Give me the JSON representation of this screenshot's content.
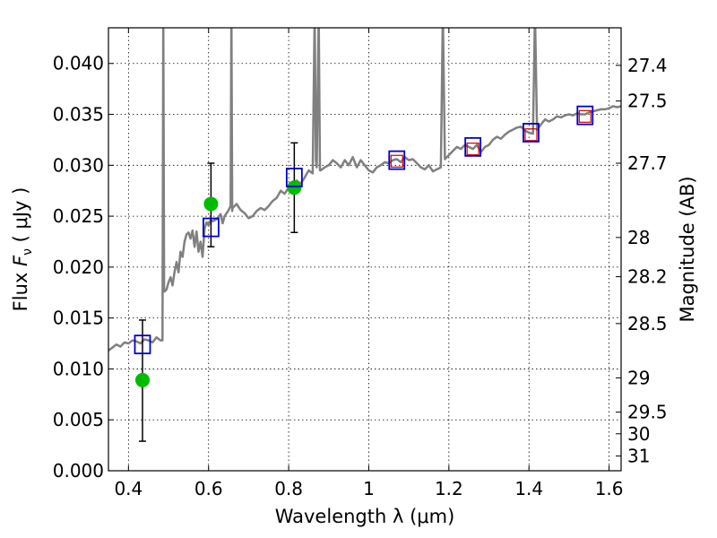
{
  "chart_data": {
    "type": "scatter",
    "xlabel": "Wavelength  λ (μm)",
    "ylabel": "Flux  Fν  ( μJy )",
    "ylabel_parts": {
      "prefix": "Flux  ",
      "symbol": "F",
      "subscript": "ν",
      "suffix": "  ( μJy )"
    },
    "ylabel_right": "Magnitude (AB)",
    "xlim": [
      0.35,
      1.63
    ],
    "ylim": [
      0.0,
      0.0435
    ],
    "grid": true,
    "x_ticks": [
      {
        "value": 0.4,
        "label": "0.4"
      },
      {
        "value": 0.6,
        "label": "0.6"
      },
      {
        "value": 0.8,
        "label": "0.8"
      },
      {
        "value": 1.0,
        "label": "1"
      },
      {
        "value": 1.2,
        "label": "1.2"
      },
      {
        "value": 1.4,
        "label": "1.4"
      },
      {
        "value": 1.6,
        "label": "1.6"
      }
    ],
    "y_ticks": [
      {
        "value": 0.0,
        "label": "0.000"
      },
      {
        "value": 0.005,
        "label": "0.005"
      },
      {
        "value": 0.01,
        "label": "0.010"
      },
      {
        "value": 0.015,
        "label": "0.015"
      },
      {
        "value": 0.02,
        "label": "0.020"
      },
      {
        "value": 0.025,
        "label": "0.025"
      },
      {
        "value": 0.03,
        "label": "0.030"
      },
      {
        "value": 0.035,
        "label": "0.035"
      },
      {
        "value": 0.04,
        "label": "0.040"
      }
    ],
    "right_ticks": [
      {
        "mag": 27.4,
        "label": "27.4"
      },
      {
        "mag": 27.5,
        "label": "27.5"
      },
      {
        "mag": 27.7,
        "label": "27.7"
      },
      {
        "mag": 28,
        "label": "28"
      },
      {
        "mag": 28.2,
        "label": "28.2"
      },
      {
        "mag": 28.5,
        "label": "28.5"
      },
      {
        "mag": 29,
        "label": "29"
      },
      {
        "mag": 29.5,
        "label": "29.5"
      },
      {
        "mag": 30,
        "label": "30"
      },
      {
        "mag": 31,
        "label": "31"
      }
    ],
    "colors": {
      "spectrum": "#808080",
      "observed": "#00bb00",
      "model_blue": "#0000cc",
      "model_red": "#cc0000",
      "errorbar": "#000000"
    },
    "spectrum": [
      [
        0.35,
        0.0118
      ],
      [
        0.36,
        0.0121
      ],
      [
        0.37,
        0.0124
      ],
      [
        0.38,
        0.0122
      ],
      [
        0.39,
        0.0126
      ],
      [
        0.4,
        0.0125
      ],
      [
        0.41,
        0.0128
      ],
      [
        0.42,
        0.0127
      ],
      [
        0.43,
        0.0125
      ],
      [
        0.44,
        0.0129
      ],
      [
        0.45,
        0.0128
      ],
      [
        0.46,
        0.0126
      ],
      [
        0.47,
        0.0131
      ],
      [
        0.48,
        0.0128
      ],
      [
        0.485,
        0.0128
      ],
      [
        0.487,
        0.045
      ],
      [
        0.489,
        0.018
      ],
      [
        0.49,
        0.0176
      ],
      [
        0.495,
        0.0178
      ],
      [
        0.5,
        0.0185
      ],
      [
        0.505,
        0.019
      ],
      [
        0.51,
        0.0182
      ],
      [
        0.515,
        0.0195
      ],
      [
        0.52,
        0.0205
      ],
      [
        0.525,
        0.0195
      ],
      [
        0.53,
        0.0215
      ],
      [
        0.535,
        0.021
      ],
      [
        0.54,
        0.0225
      ],
      [
        0.545,
        0.0232
      ],
      [
        0.55,
        0.0234
      ],
      [
        0.555,
        0.0228
      ],
      [
        0.56,
        0.0236
      ],
      [
        0.565,
        0.022
      ],
      [
        0.57,
        0.0235
      ],
      [
        0.575,
        0.0215
      ],
      [
        0.58,
        0.0225
      ],
      [
        0.585,
        0.021
      ],
      [
        0.59,
        0.0238
      ],
      [
        0.595,
        0.0244
      ],
      [
        0.6,
        0.0241
      ],
      [
        0.605,
        0.0246
      ],
      [
        0.61,
        0.0245
      ],
      [
        0.62,
        0.0247
      ],
      [
        0.63,
        0.0252
      ],
      [
        0.635,
        0.0243
      ],
      [
        0.64,
        0.025
      ],
      [
        0.65,
        0.0256
      ],
      [
        0.655,
        0.026
      ],
      [
        0.657,
        0.045
      ],
      [
        0.659,
        0.0255
      ],
      [
        0.66,
        0.0258
      ],
      [
        0.67,
        0.0262
      ],
      [
        0.68,
        0.0256
      ],
      [
        0.69,
        0.0253
      ],
      [
        0.7,
        0.0248
      ],
      [
        0.71,
        0.025
      ],
      [
        0.72,
        0.0255
      ],
      [
        0.73,
        0.0258
      ],
      [
        0.74,
        0.0256
      ],
      [
        0.75,
        0.026
      ],
      [
        0.76,
        0.0265
      ],
      [
        0.77,
        0.0268
      ],
      [
        0.78,
        0.0275
      ],
      [
        0.79,
        0.0272
      ],
      [
        0.8,
        0.0278
      ],
      [
        0.81,
        0.0282
      ],
      [
        0.82,
        0.0285
      ],
      [
        0.83,
        0.0282
      ],
      [
        0.84,
        0.0288
      ],
      [
        0.85,
        0.0295
      ],
      [
        0.86,
        0.0292
      ],
      [
        0.865,
        0.045
      ],
      [
        0.868,
        0.0305
      ],
      [
        0.87,
        0.0298
      ],
      [
        0.875,
        0.045
      ],
      [
        0.878,
        0.0295
      ],
      [
        0.88,
        0.0295
      ],
      [
        0.89,
        0.0298
      ],
      [
        0.9,
        0.03
      ],
      [
        0.91,
        0.0305
      ],
      [
        0.92,
        0.0302
      ],
      [
        0.93,
        0.0298
      ],
      [
        0.94,
        0.0305
      ],
      [
        0.95,
        0.03
      ],
      [
        0.96,
        0.0308
      ],
      [
        0.97,
        0.0298
      ],
      [
        0.98,
        0.0305
      ],
      [
        0.99,
        0.03
      ],
      [
        1.0,
        0.0295
      ],
      [
        1.01,
        0.0293
      ],
      [
        1.02,
        0.0298
      ],
      [
        1.03,
        0.03
      ],
      [
        1.04,
        0.0303
      ],
      [
        1.05,
        0.0302
      ],
      [
        1.06,
        0.0305
      ],
      [
        1.07,
        0.0306
      ],
      [
        1.08,
        0.0303
      ],
      [
        1.09,
        0.0308
      ],
      [
        1.1,
        0.0305
      ],
      [
        1.11,
        0.0306
      ],
      [
        1.12,
        0.0302
      ],
      [
        1.13,
        0.0298
      ],
      [
        1.14,
        0.0296
      ],
      [
        1.15,
        0.03
      ],
      [
        1.16,
        0.0294
      ],
      [
        1.17,
        0.0296
      ],
      [
        1.18,
        0.0298
      ],
      [
        1.185,
        0.045
      ],
      [
        1.19,
        0.0306
      ],
      [
        1.2,
        0.031
      ],
      [
        1.21,
        0.0314
      ],
      [
        1.22,
        0.0318
      ],
      [
        1.23,
        0.0316
      ],
      [
        1.24,
        0.032
      ],
      [
        1.25,
        0.0318
      ],
      [
        1.26,
        0.0316
      ],
      [
        1.27,
        0.032
      ],
      [
        1.28,
        0.0313
      ],
      [
        1.29,
        0.0318
      ],
      [
        1.3,
        0.032
      ],
      [
        1.31,
        0.0325
      ],
      [
        1.32,
        0.0328
      ],
      [
        1.33,
        0.0326
      ],
      [
        1.34,
        0.033
      ],
      [
        1.35,
        0.0333
      ],
      [
        1.36,
        0.0335
      ],
      [
        1.37,
        0.0337
      ],
      [
        1.38,
        0.0338
      ],
      [
        1.39,
        0.0334
      ],
      [
        1.4,
        0.0332
      ],
      [
        1.41,
        0.0331
      ],
      [
        1.415,
        0.045
      ],
      [
        1.42,
        0.0335
      ],
      [
        1.43,
        0.034
      ],
      [
        1.44,
        0.0345
      ],
      [
        1.45,
        0.0343
      ],
      [
        1.46,
        0.0345
      ],
      [
        1.47,
        0.0348
      ],
      [
        1.48,
        0.0347
      ],
      [
        1.49,
        0.0349
      ],
      [
        1.5,
        0.035
      ],
      [
        1.51,
        0.0349
      ],
      [
        1.52,
        0.0351
      ],
      [
        1.53,
        0.035
      ],
      [
        1.54,
        0.035
      ],
      [
        1.55,
        0.0352
      ],
      [
        1.56,
        0.0353
      ],
      [
        1.57,
        0.0354
      ],
      [
        1.58,
        0.0355
      ],
      [
        1.59,
        0.0355
      ],
      [
        1.6,
        0.0356
      ],
      [
        1.61,
        0.0358
      ],
      [
        1.62,
        0.0357
      ],
      [
        1.63,
        0.0358
      ]
    ],
    "observed": [
      {
        "x": 0.435,
        "y": 0.0089,
        "err": [
          0.0029,
          0.0148
        ]
      },
      {
        "x": 0.606,
        "y": 0.0262,
        "err": [
          0.022,
          0.0302
        ]
      },
      {
        "x": 0.814,
        "y": 0.0278,
        "err": [
          0.0234,
          0.0322
        ]
      }
    ],
    "model_blue": [
      {
        "x": 0.435,
        "y": 0.0124
      },
      {
        "x": 0.606,
        "y": 0.0239
      },
      {
        "x": 0.814,
        "y": 0.0288
      },
      {
        "x": 1.07,
        "y": 0.0305
      },
      {
        "x": 1.26,
        "y": 0.0318
      },
      {
        "x": 1.405,
        "y": 0.0332
      },
      {
        "x": 1.54,
        "y": 0.0349
      }
    ],
    "model_red": [
      {
        "x": 1.07,
        "y": 0.0304
      },
      {
        "x": 1.26,
        "y": 0.0316
      },
      {
        "x": 1.405,
        "y": 0.033
      },
      {
        "x": 1.54,
        "y": 0.0348
      }
    ]
  }
}
